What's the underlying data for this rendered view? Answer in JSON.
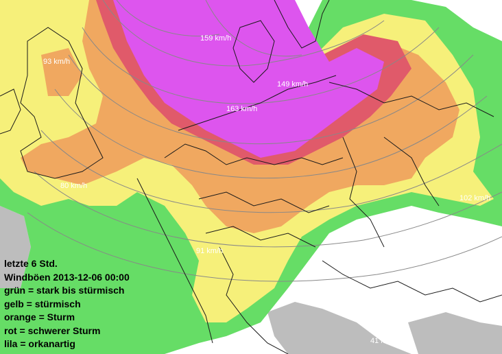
{
  "map": {
    "wind_labels": {
      "l159": "159 km/h",
      "l93": "93 km/h",
      "l149": "149 km/h",
      "l163": "163 km/h",
      "l80": "80 km/h",
      "l102": "102 km/h",
      "l91": "91 km/h",
      "l41": "41 km/h"
    },
    "colors": {
      "sea": "#ffffff",
      "land_low": "#ffffff",
      "mountains": "#bdbdbd",
      "gruen": "#66dd66",
      "gelb": "#f6f07a",
      "orange": "#f0a860",
      "rot": "#e05a6a",
      "lila": "#dd55ee",
      "borders": "#1a1a1a",
      "isobars": "#888888"
    }
  },
  "legend": {
    "line1": "letzte 6 Std.",
    "line2": "Windböen 2013-12-06 00:00",
    "line3": "grün = stark bis stürmisch",
    "line4": "gelb = stürmisch",
    "line5": "orange = Sturm",
    "line6": "rot = schwerer Sturm",
    "line7": "lila = orkanartig"
  }
}
